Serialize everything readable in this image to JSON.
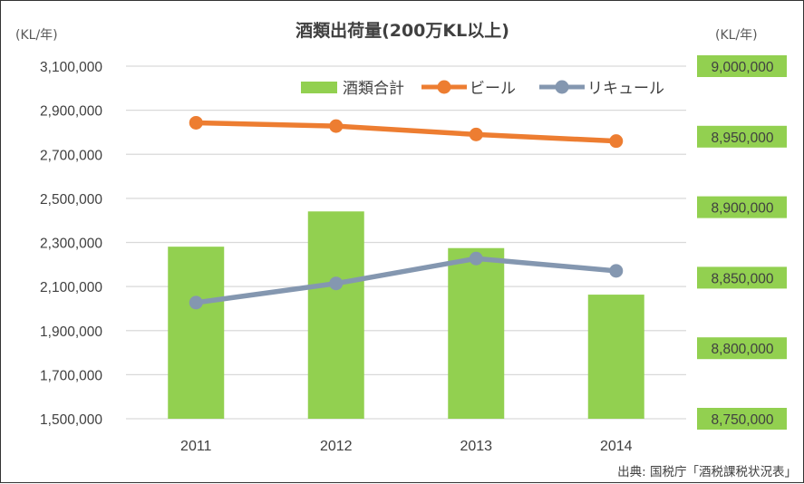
{
  "chart_data": {
    "type": "bar",
    "title": "酒類出荷量(200万KL以上)",
    "categories": [
      "2011",
      "2012",
      "2013",
      "2014"
    ],
    "left_axis": {
      "unit_label": "(KL/年)",
      "ylim": [
        1500000,
        3100000
      ],
      "ticks": [
        "3,100,000",
        "2,900,000",
        "2,700,000",
        "2,500,000",
        "2,300,000",
        "2,100,000",
        "1,900,000",
        "1,700,000",
        "1,500,000"
      ]
    },
    "right_axis": {
      "unit_label": "(KL/年)",
      "ylim": [
        8750000,
        9000000
      ],
      "ticks": [
        "9,000,000",
        "8,950,000",
        "8,900,000",
        "8,850,000",
        "8,800,000",
        "8,750,000"
      ],
      "tick_bg": "#92D050"
    },
    "series": [
      {
        "name": "酒類合計",
        "kind": "bar",
        "axis": "right",
        "color": "#92D050",
        "values": [
          8872000,
          8897000,
          8871000,
          8838000
        ]
      },
      {
        "name": "ビール",
        "kind": "line",
        "axis": "left",
        "color": "#ED7D31",
        "values": [
          2843000,
          2828000,
          2790000,
          2760000
        ]
      },
      {
        "name": "リキュール",
        "kind": "line",
        "axis": "left",
        "color": "#8497B0",
        "values": [
          2027000,
          2114000,
          2227000,
          2171000
        ]
      }
    ],
    "grid": true,
    "legend_position": "top-right",
    "source": "出典: 国税庁「酒税課税状況表」"
  }
}
